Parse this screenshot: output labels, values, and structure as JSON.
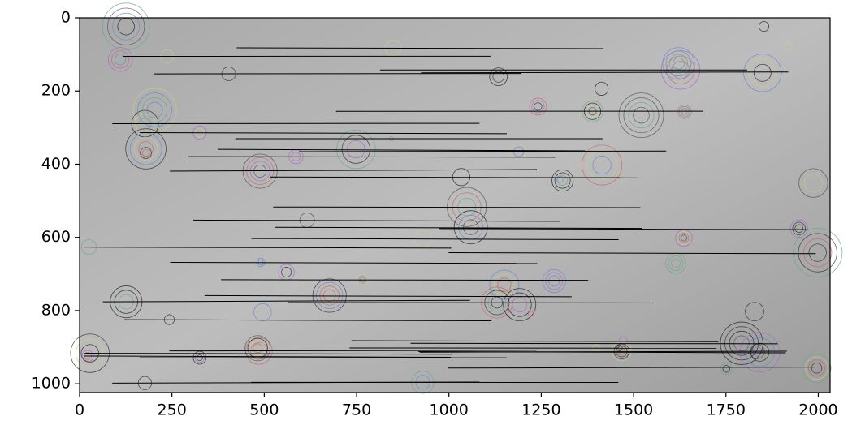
{
  "chart_data": {
    "type": "image",
    "xlim": [
      0,
      2032
    ],
    "ylim": [
      1024,
      0
    ],
    "xticks": [
      0,
      250,
      500,
      750,
      1000,
      1250,
      1500,
      1750,
      2000
    ],
    "yticks": [
      0,
      200,
      400,
      600,
      800,
      1000
    ]
  }
}
